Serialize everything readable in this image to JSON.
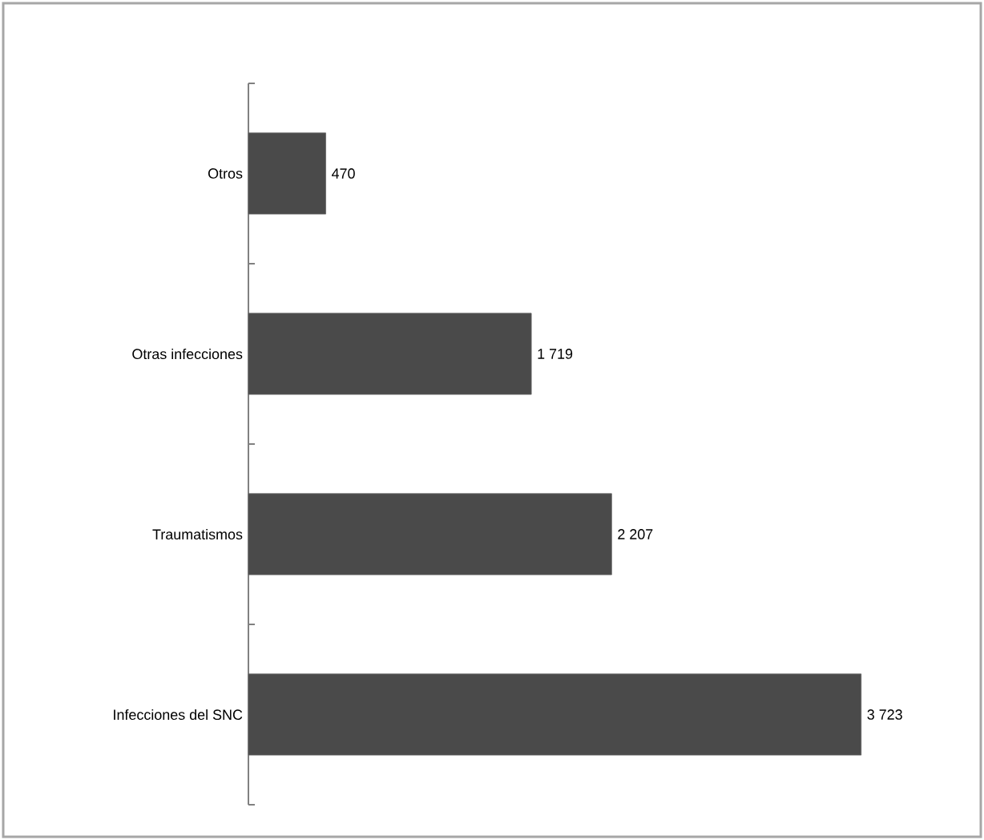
{
  "chart_data": {
    "type": "bar",
    "orientation": "horizontal",
    "categories": [
      "Otros",
      "Otras infecciones",
      "Traumatismos",
      "Infecciones del SNC"
    ],
    "values": [
      470,
      1719,
      2207,
      3723
    ],
    "value_labels": [
      "470",
      "1 719",
      "2 207",
      "3 723"
    ],
    "color": "#4a4a4a"
  }
}
